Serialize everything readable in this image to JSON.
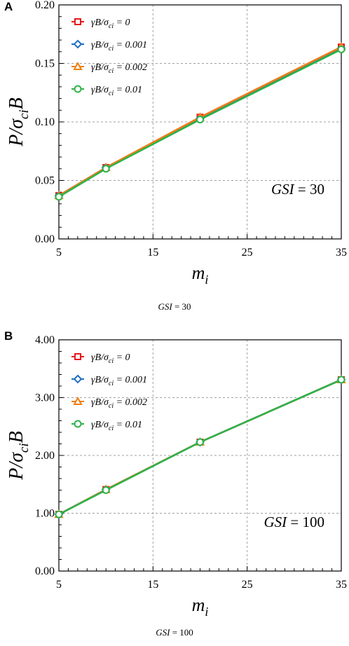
{
  "chart_data": [
    {
      "panel_label": "A",
      "type": "line",
      "ylabel": "P/σ_ci B",
      "xlabel": "m_i",
      "xlim": [
        5,
        35
      ],
      "ylim": [
        0.0,
        0.2
      ],
      "x_ticks": [
        "5",
        "15",
        "25",
        "35"
      ],
      "y_ticks": [
        "0.00",
        "0.05",
        "0.10",
        "0.15",
        "0.20"
      ],
      "grid": "dashed",
      "legend_position": "top-left",
      "annotation": "GSI = 30",
      "caption": "GSI = 30",
      "series": [
        {
          "name": "γB/σci = 0",
          "color": "#e8191c",
          "marker": "square",
          "x": [
            5,
            10,
            20,
            35
          ],
          "values": [
            0.037,
            0.061,
            0.104,
            0.164
          ]
        },
        {
          "name": "γB/σci = 0.001",
          "color": "#1f6fc4",
          "marker": "diamond",
          "x": [
            5,
            10,
            20,
            35
          ],
          "values": [
            0.037,
            0.061,
            0.103,
            0.163
          ]
        },
        {
          "name": "γB/σci = 0.002",
          "color": "#f07f10",
          "marker": "triangle",
          "x": [
            5,
            10,
            20,
            35
          ],
          "values": [
            0.037,
            0.061,
            0.104,
            0.164
          ]
        },
        {
          "name": "γB/σci = 0.01",
          "color": "#2cb34a",
          "marker": "circle",
          "x": [
            5,
            10,
            20,
            35
          ],
          "values": [
            0.036,
            0.06,
            0.102,
            0.162
          ]
        }
      ]
    },
    {
      "panel_label": "B",
      "type": "line",
      "ylabel": "P/σ_ci B",
      "xlabel": "m_i",
      "xlim": [
        5,
        35
      ],
      "ylim": [
        0.0,
        4.0
      ],
      "x_ticks": [
        "5",
        "15",
        "25",
        "35"
      ],
      "y_ticks": [
        "0.00",
        "1.00",
        "2.00",
        "3.00",
        "4.00"
      ],
      "grid": "dashed",
      "legend_position": "top-left",
      "annotation": "GSI = 100",
      "caption": "GSI = 100",
      "series": [
        {
          "name": "γB/σci = 0",
          "color": "#e8191c",
          "marker": "square",
          "x": [
            5,
            10,
            20,
            35
          ],
          "values": [
            0.98,
            1.41,
            2.23,
            3.31
          ]
        },
        {
          "name": "γB/σci = 0.001",
          "color": "#1f6fc4",
          "marker": "diamond",
          "x": [
            5,
            10,
            20,
            35
          ],
          "values": [
            0.98,
            1.41,
            2.23,
            3.31
          ]
        },
        {
          "name": "γB/σci = 0.002",
          "color": "#f07f10",
          "marker": "triangle",
          "x": [
            5,
            10,
            20,
            35
          ],
          "values": [
            0.98,
            1.41,
            2.23,
            3.31
          ]
        },
        {
          "name": "γB/σci = 0.01",
          "color": "#2cb34a",
          "marker": "circle",
          "x": [
            5,
            10,
            20,
            35
          ],
          "values": [
            0.98,
            1.4,
            2.23,
            3.31
          ]
        }
      ]
    }
  ]
}
